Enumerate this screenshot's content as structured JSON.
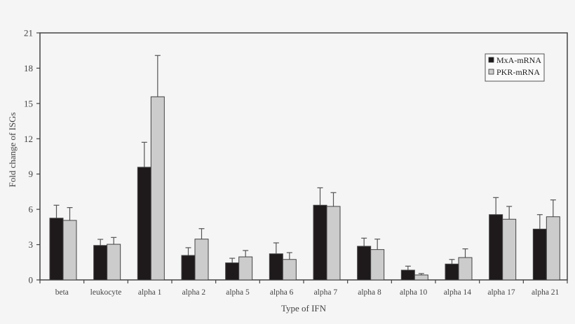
{
  "chart_data": {
    "type": "bar",
    "title": "",
    "xlabel": "Type of IFN",
    "ylabel": "Fold change of ISGs",
    "ylim": [
      0,
      21
    ],
    "yticks": [
      0,
      3,
      6,
      9,
      12,
      15,
      18,
      21
    ],
    "grid": false,
    "legend_position": "upper right",
    "categories": [
      "beta",
      "leukocyte",
      "alpha 1",
      "alpha 2",
      "alpha 5",
      "alpha 6",
      "alpha 7",
      "alpha 8",
      "alpha 10",
      "alpha 14",
      "alpha 17",
      "alpha 21"
    ],
    "series": [
      {
        "name": "MxA-mRNA",
        "color": "#1e1a1b",
        "values": [
          5.25,
          2.93,
          9.58,
          2.08,
          1.45,
          2.22,
          6.35,
          2.86,
          0.83,
          1.35,
          5.55,
          4.32
        ],
        "error_upper": [
          6.35,
          3.45,
          11.7,
          2.74,
          1.84,
          3.15,
          7.83,
          3.55,
          1.17,
          1.74,
          7.0,
          5.55
        ]
      },
      {
        "name": "PKR-mRNA",
        "color": "#cccccc",
        "values": [
          5.06,
          3.03,
          15.57,
          3.47,
          1.96,
          1.74,
          6.25,
          2.58,
          0.42,
          1.9,
          5.16,
          5.37
        ],
        "error_upper": [
          6.15,
          3.61,
          19.08,
          4.36,
          2.5,
          2.32,
          7.42,
          3.47,
          0.54,
          2.64,
          6.25,
          6.8
        ]
      }
    ]
  }
}
